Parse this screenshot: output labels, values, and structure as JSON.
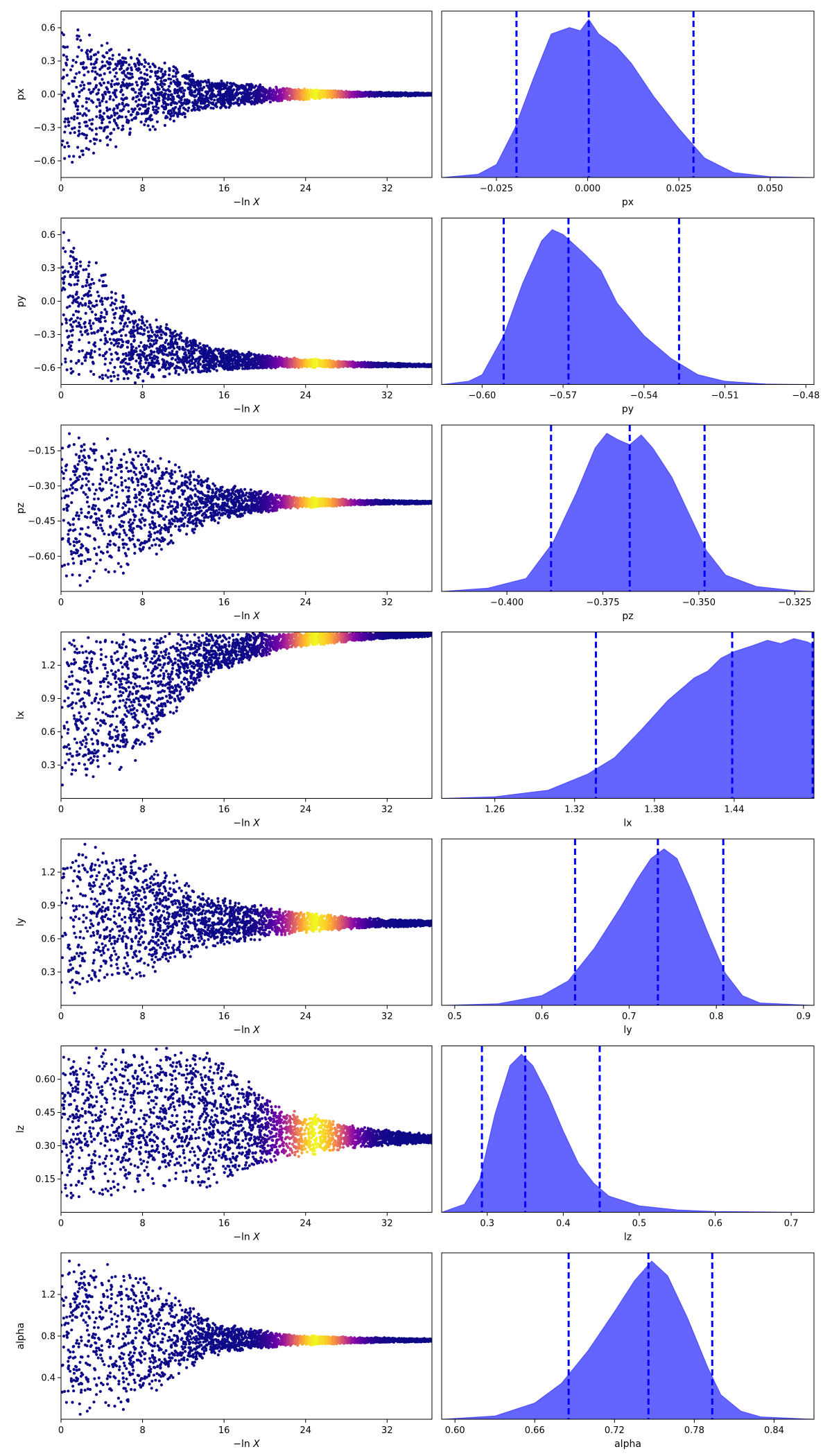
{
  "chart_data": [
    {
      "type": "scatter",
      "row": 0,
      "ylabel": "px",
      "xlabel_prefix": "−ln",
      "xlabel_var": "X",
      "xlim": [
        0,
        36.4
      ],
      "ylim": [
        -0.75,
        0.75
      ],
      "x_ticks": [
        "0",
        "8",
        "16",
        "24",
        "32"
      ],
      "y_ticks": [
        "0.6",
        "0.3",
        "0.0",
        "−0.3",
        "−0.6"
      ],
      "trace": {
        "center": [
          0.0,
          0.0,
          0.0,
          0.0,
          0.0,
          0.0
        ],
        "halfwidth": [
          0.75,
          0.4,
          0.15,
          0.06,
          0.025,
          0.012
        ]
      },
      "colormap": "plasma",
      "peak_x": 25.2
    },
    {
      "type": "area",
      "row": 0,
      "xlabel": "px",
      "xlim": [
        -0.04,
        0.062
      ],
      "x_ticks": [
        "−0.025",
        "0.000",
        "0.025",
        "0.050"
      ],
      "quantiles": [
        -0.0195,
        0.0003,
        0.029
      ],
      "density": [
        [
          -0.04,
          0
        ],
        [
          -0.03,
          0.02
        ],
        [
          -0.025,
          0.08
        ],
        [
          -0.02,
          0.3
        ],
        [
          -0.015,
          0.6
        ],
        [
          -0.01,
          0.88
        ],
        [
          -0.005,
          0.92
        ],
        [
          -0.002,
          0.9
        ],
        [
          0.0003,
          0.97
        ],
        [
          0.003,
          0.88
        ],
        [
          0.008,
          0.8
        ],
        [
          0.012,
          0.7
        ],
        [
          0.018,
          0.5
        ],
        [
          0.025,
          0.3
        ],
        [
          0.032,
          0.12
        ],
        [
          0.04,
          0.03
        ],
        [
          0.05,
          0.005
        ],
        [
          0.062,
          0
        ]
      ],
      "fill_color": "#6464ff",
      "line_color": "#0000ff"
    },
    {
      "type": "scatter",
      "row": 1,
      "ylabel": "py",
      "xlabel_prefix": "−ln",
      "xlabel_var": "X",
      "xlim": [
        0,
        36.4
      ],
      "ylim": [
        -0.75,
        0.75
      ],
      "x_ticks": [
        "0",
        "8",
        "16",
        "24",
        "32"
      ],
      "y_ticks": [
        "0.6",
        "0.3",
        "0.0",
        "−0.3",
        "−0.6"
      ],
      "trace": {
        "center": [
          0.0,
          -0.4,
          -0.52,
          -0.55,
          -0.57,
          -0.58
        ],
        "halfwidth": [
          0.75,
          0.35,
          0.12,
          0.05,
          0.025,
          0.012
        ]
      },
      "colormap": "plasma",
      "peak_x": 25.2
    },
    {
      "type": "area",
      "row": 1,
      "xlabel": "py",
      "xlim": [
        -0.615,
        -0.477
      ],
      "x_ticks": [
        "−0.60",
        "−0.57",
        "−0.54",
        "−0.51",
        "−0.48"
      ],
      "quantiles": [
        -0.592,
        -0.568,
        -0.527
      ],
      "density": [
        [
          -0.615,
          0
        ],
        [
          -0.605,
          0.02
        ],
        [
          -0.6,
          0.06
        ],
        [
          -0.592,
          0.3
        ],
        [
          -0.585,
          0.62
        ],
        [
          -0.578,
          0.88
        ],
        [
          -0.574,
          0.95
        ],
        [
          -0.57,
          0.92
        ],
        [
          -0.566,
          0.86
        ],
        [
          -0.562,
          0.8
        ],
        [
          -0.556,
          0.7
        ],
        [
          -0.55,
          0.5
        ],
        [
          -0.54,
          0.3
        ],
        [
          -0.53,
          0.16
        ],
        [
          -0.52,
          0.06
        ],
        [
          -0.51,
          0.02
        ],
        [
          -0.495,
          0.003
        ],
        [
          -0.477,
          0
        ]
      ],
      "fill_color": "#6464ff",
      "line_color": "#0000ff"
    },
    {
      "type": "scatter",
      "row": 2,
      "ylabel": "pz",
      "xlabel_prefix": "−ln",
      "xlabel_var": "X",
      "xlim": [
        0,
        36.4
      ],
      "ylim": [
        -0.75,
        -0.04
      ],
      "x_ticks": [
        "0",
        "8",
        "16",
        "24",
        "32"
      ],
      "y_ticks": [
        "−0.15",
        "−0.30",
        "−0.45",
        "−0.60"
      ],
      "trace": {
        "center": [
          -0.4,
          -0.38,
          -0.37,
          -0.37,
          -0.37,
          -0.37
        ],
        "halfwidth": [
          0.36,
          0.28,
          0.1,
          0.03,
          0.012,
          0.006
        ]
      },
      "colormap": "plasma",
      "peak_x": 25.2
    },
    {
      "type": "area",
      "row": 2,
      "xlabel": "pz",
      "xlim": [
        -0.417,
        -0.32
      ],
      "x_ticks": [
        "−0.400",
        "−0.375",
        "−0.350",
        "−0.325"
      ],
      "quantiles": [
        -0.3885,
        -0.368,
        -0.3485
      ],
      "density": [
        [
          -0.417,
          0
        ],
        [
          -0.405,
          0.02
        ],
        [
          -0.395,
          0.08
        ],
        [
          -0.388,
          0.3
        ],
        [
          -0.382,
          0.6
        ],
        [
          -0.377,
          0.88
        ],
        [
          -0.374,
          0.97
        ],
        [
          -0.371,
          0.93
        ],
        [
          -0.368,
          0.9
        ],
        [
          -0.365,
          0.96
        ],
        [
          -0.362,
          0.88
        ],
        [
          -0.357,
          0.7
        ],
        [
          -0.352,
          0.45
        ],
        [
          -0.348,
          0.25
        ],
        [
          -0.343,
          0.1
        ],
        [
          -0.335,
          0.03
        ],
        [
          -0.325,
          0.005
        ],
        [
          -0.32,
          0
        ]
      ],
      "fill_color": "#6464ff",
      "line_color": "#0000ff"
    },
    {
      "type": "scatter",
      "row": 3,
      "ylabel": "lx",
      "xlabel_prefix": "−ln",
      "xlabel_var": "X",
      "xlim": [
        0,
        36.4
      ],
      "ylim": [
        0.0,
        1.5
      ],
      "x_ticks": [
        "0",
        "8",
        "16",
        "24",
        "32"
      ],
      "y_ticks": [
        "1.2",
        "0.9",
        "0.6",
        "0.3"
      ],
      "trace": {
        "center": [
          0.75,
          0.9,
          1.3,
          1.42,
          1.46,
          1.48
        ],
        "halfwidth": [
          0.75,
          0.6,
          0.2,
          0.08,
          0.04,
          0.02
        ]
      },
      "colormap": "plasma",
      "peak_x": 25.2
    },
    {
      "type": "area",
      "row": 3,
      "xlabel": "lx",
      "xlim": [
        1.22,
        1.5
      ],
      "x_ticks": [
        "1.26",
        "1.32",
        "1.38",
        "1.44"
      ],
      "quantiles": [
        1.336,
        1.4385,
        1.499
      ],
      "density": [
        [
          1.22,
          0
        ],
        [
          1.26,
          0.01
        ],
        [
          1.3,
          0.05
        ],
        [
          1.33,
          0.15
        ],
        [
          1.35,
          0.25
        ],
        [
          1.37,
          0.42
        ],
        [
          1.39,
          0.6
        ],
        [
          1.41,
          0.74
        ],
        [
          1.42,
          0.78
        ],
        [
          1.43,
          0.86
        ],
        [
          1.44,
          0.9
        ],
        [
          1.455,
          0.94
        ],
        [
          1.465,
          0.97
        ],
        [
          1.475,
          0.95
        ],
        [
          1.485,
          0.98
        ],
        [
          1.495,
          0.96
        ],
        [
          1.5,
          0.94
        ]
      ],
      "fill_color": "#6464ff",
      "line_color": "#0000ff"
    },
    {
      "type": "scatter",
      "row": 4,
      "ylabel": "ly",
      "xlabel_prefix": "−ln",
      "xlabel_var": "X",
      "xlim": [
        0,
        36.4
      ],
      "ylim": [
        0.0,
        1.5
      ],
      "x_ticks": [
        "0",
        "8",
        "16",
        "24",
        "32"
      ],
      "y_ticks": [
        "1.2",
        "0.9",
        "0.6",
        "0.3"
      ],
      "trace": {
        "center": [
          0.8,
          0.8,
          0.75,
          0.75,
          0.74,
          0.74
        ],
        "halfwidth": [
          0.75,
          0.6,
          0.25,
          0.12,
          0.05,
          0.025
        ]
      },
      "colormap": "plasma",
      "peak_x": 25.2
    },
    {
      "type": "area",
      "row": 4,
      "xlabel": "ly",
      "xlim": [
        0.485,
        0.912
      ],
      "x_ticks": [
        "0.5",
        "0.6",
        "0.7",
        "0.8",
        "0.9"
      ],
      "quantiles": [
        0.638,
        0.733,
        0.808
      ],
      "density": [
        [
          0.485,
          0
        ],
        [
          0.55,
          0.01
        ],
        [
          0.6,
          0.06
        ],
        [
          0.63,
          0.15
        ],
        [
          0.66,
          0.35
        ],
        [
          0.69,
          0.6
        ],
        [
          0.71,
          0.78
        ],
        [
          0.725,
          0.9
        ],
        [
          0.74,
          0.96
        ],
        [
          0.755,
          0.9
        ],
        [
          0.77,
          0.72
        ],
        [
          0.79,
          0.45
        ],
        [
          0.81,
          0.2
        ],
        [
          0.83,
          0.06
        ],
        [
          0.85,
          0.015
        ],
        [
          0.912,
          0
        ]
      ],
      "fill_color": "#6464ff",
      "line_color": "#0000ff"
    },
    {
      "type": "scatter",
      "row": 5,
      "ylabel": "lz",
      "xlabel_prefix": "−ln",
      "xlabel_var": "X",
      "xlim": [
        0,
        36.4
      ],
      "ylim": [
        0.0,
        0.75
      ],
      "x_ticks": [
        "0",
        "8",
        "16",
        "24",
        "32"
      ],
      "y_ticks": [
        "0.60",
        "0.45",
        "0.30",
        "0.15"
      ],
      "trace": {
        "center": [
          0.375,
          0.42,
          0.42,
          0.36,
          0.34,
          0.33
        ],
        "halfwidth": [
          0.375,
          0.34,
          0.33,
          0.12,
          0.05,
          0.02
        ]
      },
      "colormap": "plasma",
      "peak_x": 25.2
    },
    {
      "type": "area",
      "row": 5,
      "xlabel": "lz",
      "xlim": [
        0.24,
        0.73
      ],
      "x_ticks": [
        "0.3",
        "0.4",
        "0.5",
        "0.6",
        "0.7"
      ],
      "quantiles": [
        0.293,
        0.35,
        0.448
      ],
      "density": [
        [
          0.24,
          0
        ],
        [
          0.27,
          0.05
        ],
        [
          0.29,
          0.2
        ],
        [
          0.31,
          0.6
        ],
        [
          0.33,
          0.9
        ],
        [
          0.345,
          0.97
        ],
        [
          0.36,
          0.9
        ],
        [
          0.38,
          0.72
        ],
        [
          0.4,
          0.5
        ],
        [
          0.42,
          0.3
        ],
        [
          0.44,
          0.18
        ],
        [
          0.46,
          0.1
        ],
        [
          0.5,
          0.04
        ],
        [
          0.55,
          0.015
        ],
        [
          0.6,
          0.005
        ],
        [
          0.73,
          0
        ]
      ],
      "fill_color": "#6464ff",
      "line_color": "#0000ff"
    },
    {
      "type": "scatter",
      "row": 6,
      "ylabel": "alpha",
      "xlabel_prefix": "−ln",
      "xlabel_var": "X",
      "xlim": [
        0,
        36.4
      ],
      "ylim": [
        0.0,
        1.6
      ],
      "x_ticks": [
        "0",
        "8",
        "16",
        "24",
        "32"
      ],
      "y_ticks": [
        "1.2",
        "0.8",
        "0.4"
      ],
      "trace": {
        "center": [
          0.8,
          0.8,
          0.78,
          0.76,
          0.76,
          0.76
        ],
        "halfwidth": [
          0.8,
          0.7,
          0.18,
          0.06,
          0.03,
          0.015
        ]
      },
      "colormap": "plasma",
      "peak_x": 25.2
    },
    {
      "type": "area",
      "row": 6,
      "xlabel": "alpha",
      "xlim": [
        0.59,
        0.87
      ],
      "x_ticks": [
        "0.60",
        "0.66",
        "0.72",
        "0.78",
        "0.84"
      ],
      "quantiles": [
        0.6855,
        0.7455,
        0.7935
      ],
      "density": [
        [
          0.59,
          0
        ],
        [
          0.63,
          0.02
        ],
        [
          0.66,
          0.1
        ],
        [
          0.68,
          0.22
        ],
        [
          0.7,
          0.42
        ],
        [
          0.72,
          0.66
        ],
        [
          0.735,
          0.85
        ],
        [
          0.748,
          0.97
        ],
        [
          0.76,
          0.88
        ],
        [
          0.775,
          0.62
        ],
        [
          0.79,
          0.32
        ],
        [
          0.8,
          0.15
        ],
        [
          0.815,
          0.05
        ],
        [
          0.83,
          0.015
        ],
        [
          0.87,
          0
        ]
      ],
      "fill_color": "#6464ff",
      "line_color": "#0000ff"
    }
  ]
}
